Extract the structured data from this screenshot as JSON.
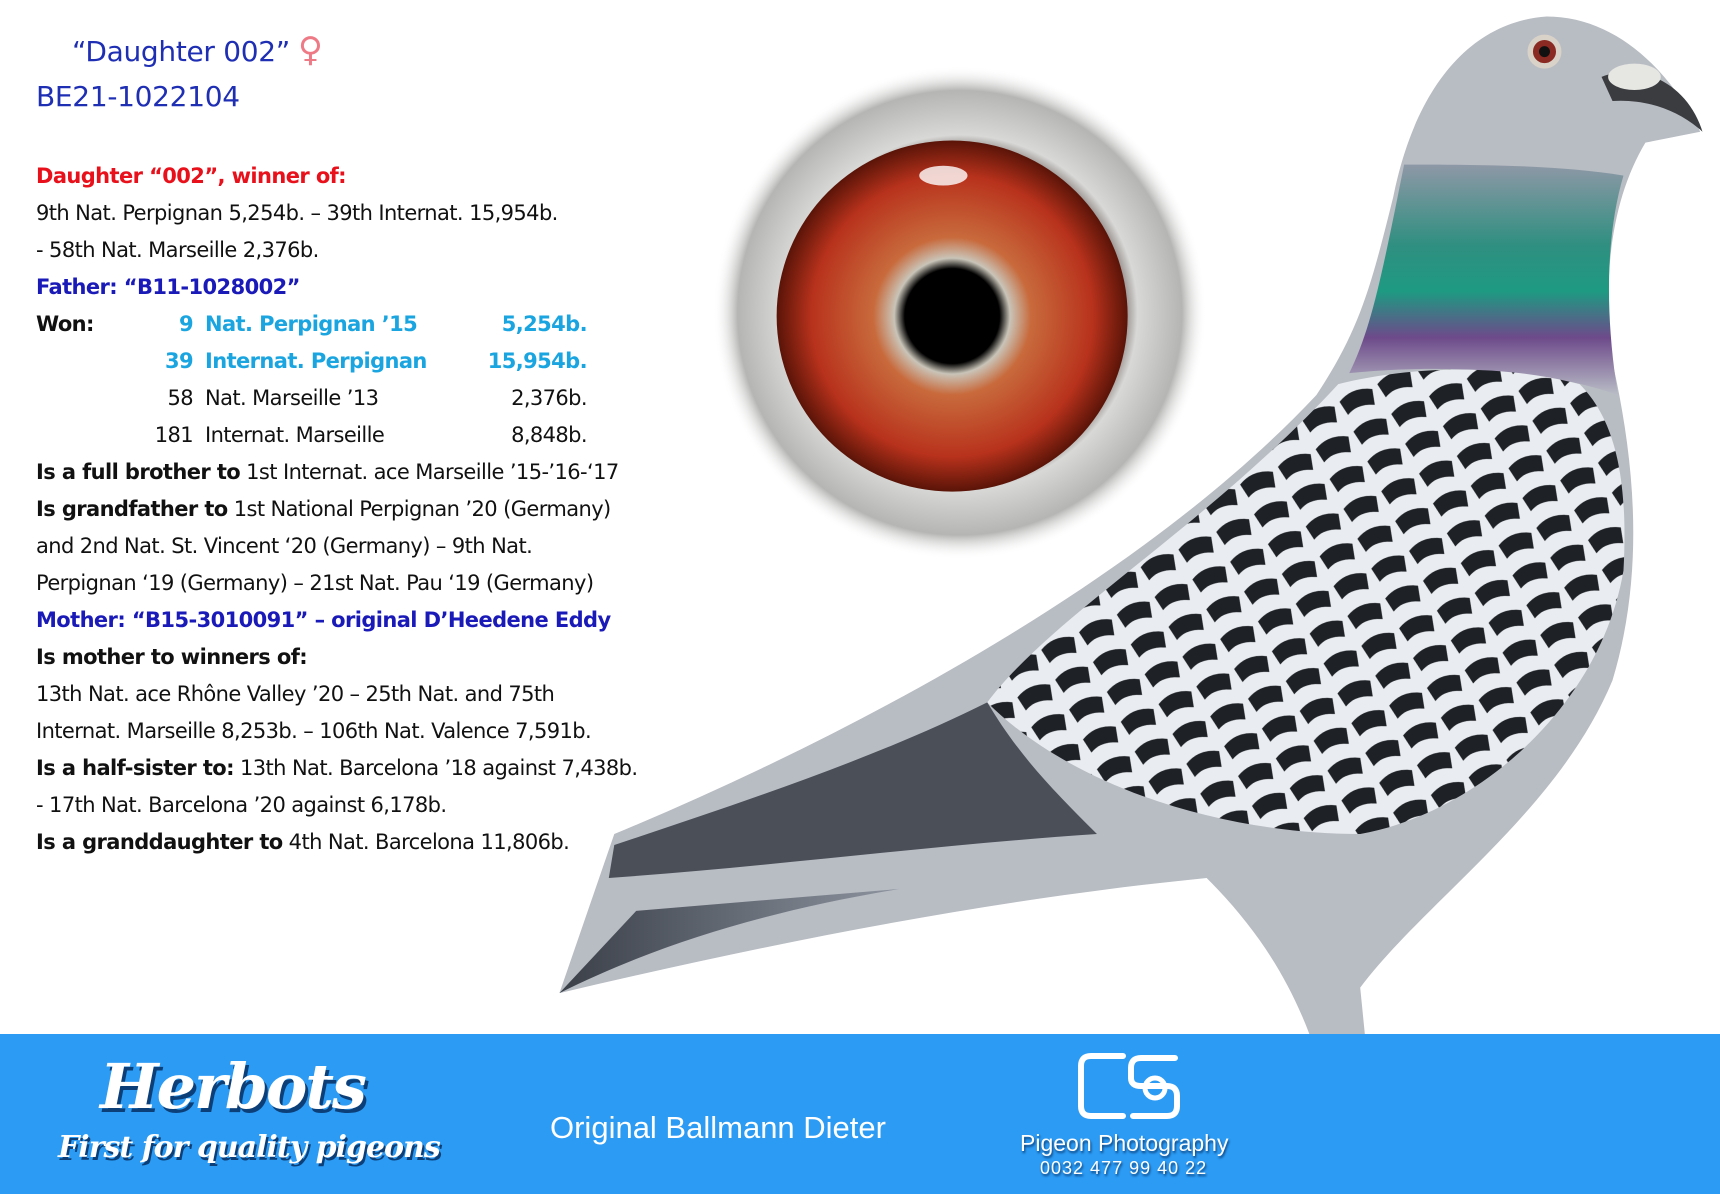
{
  "header": {
    "name": "“Daughter 002”",
    "sex_symbol": "♀",
    "ring": "BE21-1022104"
  },
  "pedigree": {
    "heading": "Daughter “002”, winner of:",
    "results": [
      "9th Nat. Perpignan 5,254b. – 39th Internat. 15,954b.",
      "- 58th Nat. Marseille 2,376b."
    ],
    "father": "Father: “B11-1028002”",
    "won_label": "Won:",
    "won": [
      {
        "place": "9",
        "race": "Nat. Perpignan ’15",
        "birds": "5,254b.",
        "highlight": true
      },
      {
        "place": "39",
        "race": "Internat. Perpignan",
        "birds": "15,954b.",
        "highlight": true
      },
      {
        "place": "58",
        "race": "Nat. Marseille ’13",
        "birds": "2,376b.",
        "highlight": false
      },
      {
        "place": "181",
        "race": "Internat. Marseille",
        "birds": "8,848b.",
        "highlight": false
      }
    ],
    "father_lines": [
      {
        "bold": "Is a full brother to",
        "text": " 1st Internat. ace Marseille ’15-’16-‘17"
      },
      {
        "bold": "Is grandfather to",
        "text": " 1st National Perpignan ’20 (Germany)"
      },
      {
        "bold": "",
        "text": "and 2nd Nat. St. Vincent ‘20 (Germany) – 9th Nat."
      },
      {
        "bold": "",
        "text": "Perpignan ‘19 (Germany) – 21st Nat. Pau ‘19 (Germany)"
      }
    ],
    "mother": "Mother: “B15-3010091” – original D’Heedene Eddy",
    "mother_lines": [
      {
        "bold": "Is mother to winners of:",
        "text": ""
      },
      {
        "bold": "",
        "text": "13th Nat. ace Rhône Valley ’20 – 25th Nat. and 75th"
      },
      {
        "bold": "",
        "text": "Internat. Marseille 8,253b. – 106th Nat. Valence 7,591b."
      },
      {
        "bold": "Is a half-sister to:",
        "text": " 13th Nat. Barcelona ’18 against 7,438b."
      },
      {
        "bold": "",
        "text": "- 17th Nat. Barcelona ’20 against 6,178b."
      },
      {
        "bold": "Is a granddaughter to",
        "text": " 4th Nat. Barcelona 11,806b."
      }
    ]
  },
  "banner": {
    "logo_name": "Herbots",
    "logo_tagline": "First for quality pigeons",
    "origin": "Original Ballmann Dieter",
    "photographer_logo": "CS",
    "photographer": "Pigeon Photography",
    "phone": "0032 477 99 40 22"
  },
  "colors": {
    "banner": "#2b9bf4",
    "heading_red": "#e8101a",
    "parent_blue": "#1a1ab8",
    "highlight_blue": "#1aa5e0",
    "female_symbol": "#ee7a86"
  }
}
